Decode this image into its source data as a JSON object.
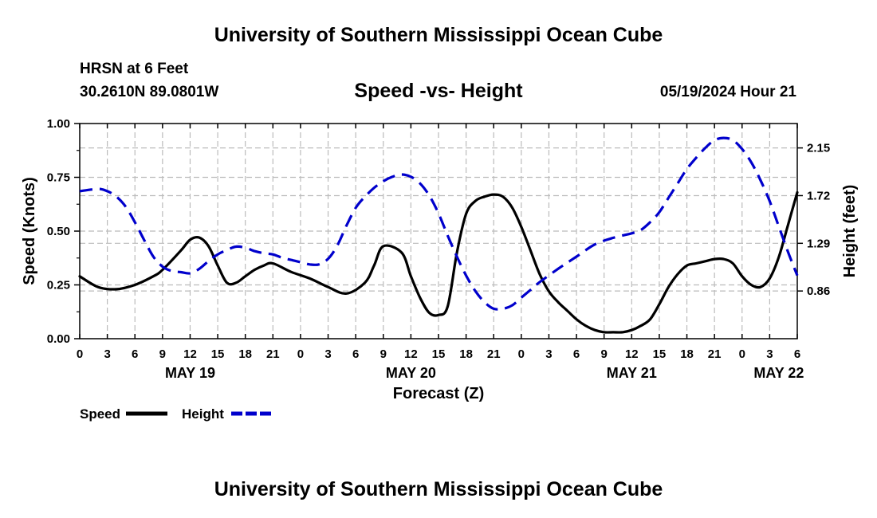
{
  "header": {
    "title": "University of Southern Mississippi Ocean Cube",
    "station": "HRSN at 6 Feet",
    "coordinates": "30.2610N  89.0801W",
    "timestamp": "05/19/2024 Hour 21"
  },
  "footer": {
    "title": "University of Southern Mississippi Ocean Cube"
  },
  "colors": {
    "speed": "#000000",
    "height": "#0000cc",
    "grid": "#bbbbbb"
  },
  "chart_data": {
    "type": "line",
    "title": "Speed -vs- Height",
    "xlabel": "Forecast (Z)",
    "ylabel": "Speed (Knots)",
    "y2label": "Height (feet)",
    "x_range_hours": [
      0,
      78
    ],
    "x_ticks": [
      {
        "hour": 0,
        "label": "0"
      },
      {
        "hour": 3,
        "label": "3"
      },
      {
        "hour": 6,
        "label": "6"
      },
      {
        "hour": 9,
        "label": "9"
      },
      {
        "hour": 12,
        "label": "12"
      },
      {
        "hour": 15,
        "label": "15"
      },
      {
        "hour": 18,
        "label": "18"
      },
      {
        "hour": 21,
        "label": "21"
      },
      {
        "hour": 24,
        "label": "0"
      },
      {
        "hour": 27,
        "label": "3"
      },
      {
        "hour": 30,
        "label": "6"
      },
      {
        "hour": 33,
        "label": "9"
      },
      {
        "hour": 36,
        "label": "12"
      },
      {
        "hour": 39,
        "label": "15"
      },
      {
        "hour": 42,
        "label": "18"
      },
      {
        "hour": 45,
        "label": "21"
      },
      {
        "hour": 48,
        "label": "0"
      },
      {
        "hour": 51,
        "label": "3"
      },
      {
        "hour": 54,
        "label": "6"
      },
      {
        "hour": 57,
        "label": "9"
      },
      {
        "hour": 60,
        "label": "12"
      },
      {
        "hour": 63,
        "label": "15"
      },
      {
        "hour": 66,
        "label": "18"
      },
      {
        "hour": 69,
        "label": "21"
      },
      {
        "hour": 72,
        "label": "0"
      },
      {
        "hour": 75,
        "label": "3"
      },
      {
        "hour": 78,
        "label": "6"
      }
    ],
    "date_labels": [
      {
        "hour": 12,
        "label": "MAY 19"
      },
      {
        "hour": 36,
        "label": "MAY 20"
      },
      {
        "hour": 60,
        "label": "MAY 21"
      },
      {
        "hour": 76,
        "label": "MAY 22"
      }
    ],
    "y_left": {
      "range": [
        0,
        1.0
      ],
      "ticks": [
        0,
        0.25,
        0.5,
        0.75,
        1.0
      ],
      "tick_labels": [
        "0.00",
        "0.25",
        "0.50",
        "0.75",
        "1.00"
      ]
    },
    "y_right": {
      "range": [
        0.43,
        2.37
      ],
      "ticks": [
        0.86,
        1.29,
        1.72,
        2.15
      ],
      "tick_labels": [
        "0.86",
        "1.29",
        "1.72",
        "2.15"
      ]
    },
    "series": [
      {
        "name": "Speed",
        "axis": "left",
        "style": "solid",
        "x": [
          0,
          2,
          4,
          6,
          8,
          9,
          11,
          12,
          13,
          14,
          15,
          16,
          17,
          18,
          19,
          20,
          21,
          23,
          25,
          27,
          29,
          31,
          32,
          33,
          35,
          36,
          37,
          38,
          39,
          40,
          41,
          42,
          43,
          44,
          45,
          46,
          47,
          48,
          49,
          50,
          51,
          52,
          53,
          54,
          55,
          56,
          57,
          58,
          59,
          60,
          61,
          62,
          63,
          64,
          65,
          66,
          67,
          68,
          69,
          70,
          71,
          72,
          73,
          74,
          75,
          76,
          77,
          78
        ],
        "values": [
          0.29,
          0.24,
          0.23,
          0.25,
          0.29,
          0.32,
          0.41,
          0.46,
          0.47,
          0.43,
          0.34,
          0.26,
          0.26,
          0.29,
          0.32,
          0.34,
          0.35,
          0.31,
          0.28,
          0.24,
          0.21,
          0.26,
          0.34,
          0.43,
          0.4,
          0.29,
          0.19,
          0.12,
          0.11,
          0.15,
          0.4,
          0.58,
          0.64,
          0.66,
          0.67,
          0.66,
          0.61,
          0.52,
          0.41,
          0.3,
          0.22,
          0.17,
          0.13,
          0.09,
          0.06,
          0.04,
          0.03,
          0.03,
          0.03,
          0.04,
          0.06,
          0.09,
          0.16,
          0.24,
          0.3,
          0.34,
          0.35,
          0.36,
          0.37,
          0.37,
          0.35,
          0.29,
          0.25,
          0.24,
          0.28,
          0.38,
          0.53,
          0.68
        ]
      },
      {
        "name": "Height",
        "axis": "right",
        "style": "dashed",
        "x": [
          0,
          2,
          3,
          4,
          5,
          6,
          7,
          8,
          9,
          10,
          11,
          12,
          13,
          14,
          15,
          16,
          17,
          18,
          19,
          20,
          21,
          22,
          23,
          24,
          25,
          26,
          27,
          28,
          29,
          30,
          31,
          32,
          33,
          34,
          35,
          36,
          37,
          38,
          39,
          40,
          41,
          42,
          43,
          44,
          45,
          46,
          47,
          48,
          49,
          50,
          52,
          54,
          56,
          58,
          60,
          61,
          62,
          63,
          64,
          65,
          66,
          67,
          68,
          69,
          70,
          71,
          72,
          73,
          74,
          75,
          76,
          77,
          78
        ],
        "values": [
          1.76,
          1.78,
          1.76,
          1.71,
          1.62,
          1.48,
          1.32,
          1.17,
          1.08,
          1.04,
          1.03,
          1.02,
          1.06,
          1.13,
          1.19,
          1.23,
          1.26,
          1.25,
          1.22,
          1.2,
          1.19,
          1.16,
          1.14,
          1.12,
          1.1,
          1.1,
          1.15,
          1.27,
          1.45,
          1.61,
          1.71,
          1.79,
          1.85,
          1.89,
          1.91,
          1.89,
          1.83,
          1.72,
          1.56,
          1.36,
          1.17,
          1.0,
          0.86,
          0.76,
          0.7,
          0.7,
          0.73,
          0.8,
          0.87,
          0.94,
          1.06,
          1.17,
          1.28,
          1.34,
          1.38,
          1.41,
          1.48,
          1.57,
          1.7,
          1.83,
          1.96,
          2.06,
          2.15,
          2.22,
          2.24,
          2.22,
          2.14,
          2.02,
          1.86,
          1.67,
          1.44,
          1.21,
          1.0
        ]
      }
    ],
    "legend": [
      {
        "label": "Speed",
        "style": "solid"
      },
      {
        "label": "Height",
        "style": "dashed"
      }
    ],
    "legend_position": "bottom-left"
  }
}
